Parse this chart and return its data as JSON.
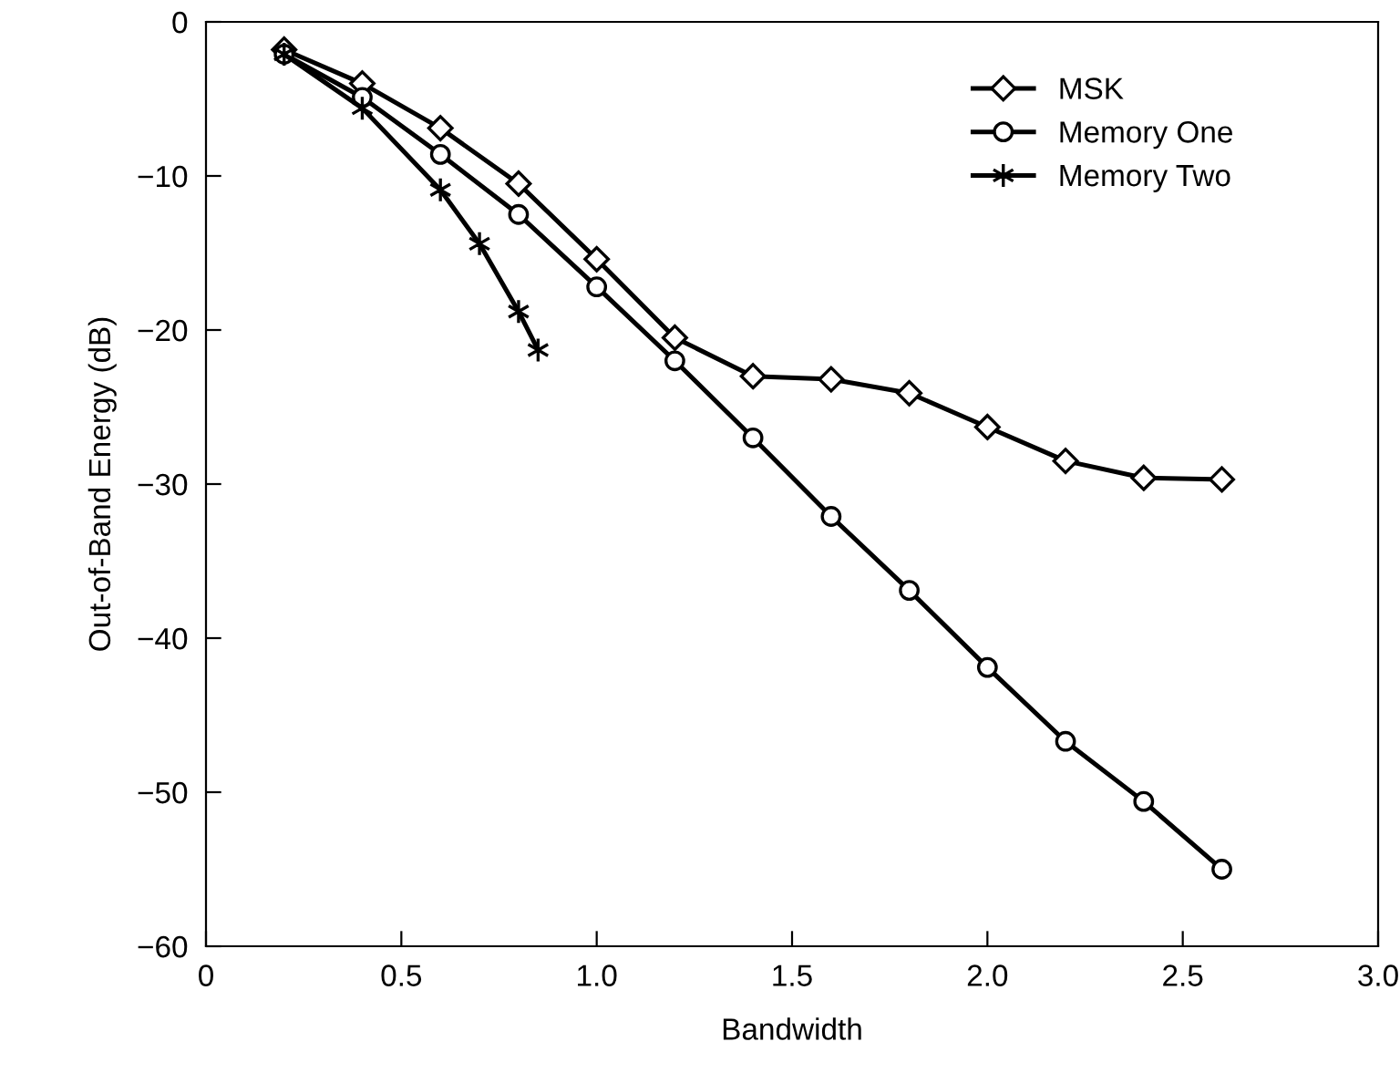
{
  "chart_data": {
    "type": "line",
    "xlabel": "Bandwidth",
    "ylabel": "Out-of-Band Energy (dB)",
    "xlim": [
      0,
      3.0
    ],
    "ylim": [
      -60,
      0
    ],
    "xticks": [
      0,
      {
        "value": 0.5,
        "label": "0.5"
      },
      {
        "value": 1.0,
        "label": "1.0"
      },
      {
        "value": 1.5,
        "label": "1.5"
      },
      {
        "value": 2.0,
        "label": "2.0"
      },
      {
        "value": 2.5,
        "label": "2.5"
      },
      {
        "value": 3.0,
        "label": "3.0"
      }
    ],
    "yticks": [
      {
        "value": -60,
        "label": "−60"
      },
      {
        "value": -50,
        "label": "−50"
      },
      {
        "value": -40,
        "label": "−40"
      },
      {
        "value": -30,
        "label": "−30"
      },
      {
        "value": -20,
        "label": "−20"
      },
      {
        "value": -10,
        "label": "−10"
      },
      0
    ],
    "grid": false,
    "legend": "top right",
    "line_style": "solid",
    "series": [
      {
        "name": "MSK",
        "color": "#000000",
        "marker": "diamond",
        "x": [
          0.2,
          0.4,
          0.6,
          0.8,
          1.0,
          1.2,
          1.4,
          1.6,
          1.8,
          2.0,
          2.2,
          2.4,
          2.6
        ],
        "values": [
          -1.8,
          -4.0,
          -6.9,
          -10.5,
          -15.4,
          -20.5,
          -23.0,
          -23.2,
          -24.1,
          -26.3,
          -28.5,
          -29.6,
          -29.7
        ]
      },
      {
        "name": "Memory One",
        "color": "#000000",
        "marker": "circle",
        "x": [
          0.2,
          0.4,
          0.6,
          0.8,
          1.0,
          1.2,
          1.4,
          1.6,
          1.8,
          2.0,
          2.2,
          2.4,
          2.6
        ],
        "values": [
          -2.1,
          -4.9,
          -8.6,
          -12.5,
          -17.2,
          -22.0,
          -27.0,
          -32.1,
          -36.9,
          -41.9,
          -46.7,
          -50.6,
          -55.0
        ]
      },
      {
        "name": "Memory Two",
        "color": "#000000",
        "marker": "cross",
        "x": [
          0.2,
          0.4,
          0.6,
          0.7,
          0.8,
          0.85
        ],
        "values": [
          -2.1,
          -5.6,
          -10.9,
          -14.4,
          -18.8,
          -21.3
        ]
      }
    ]
  }
}
